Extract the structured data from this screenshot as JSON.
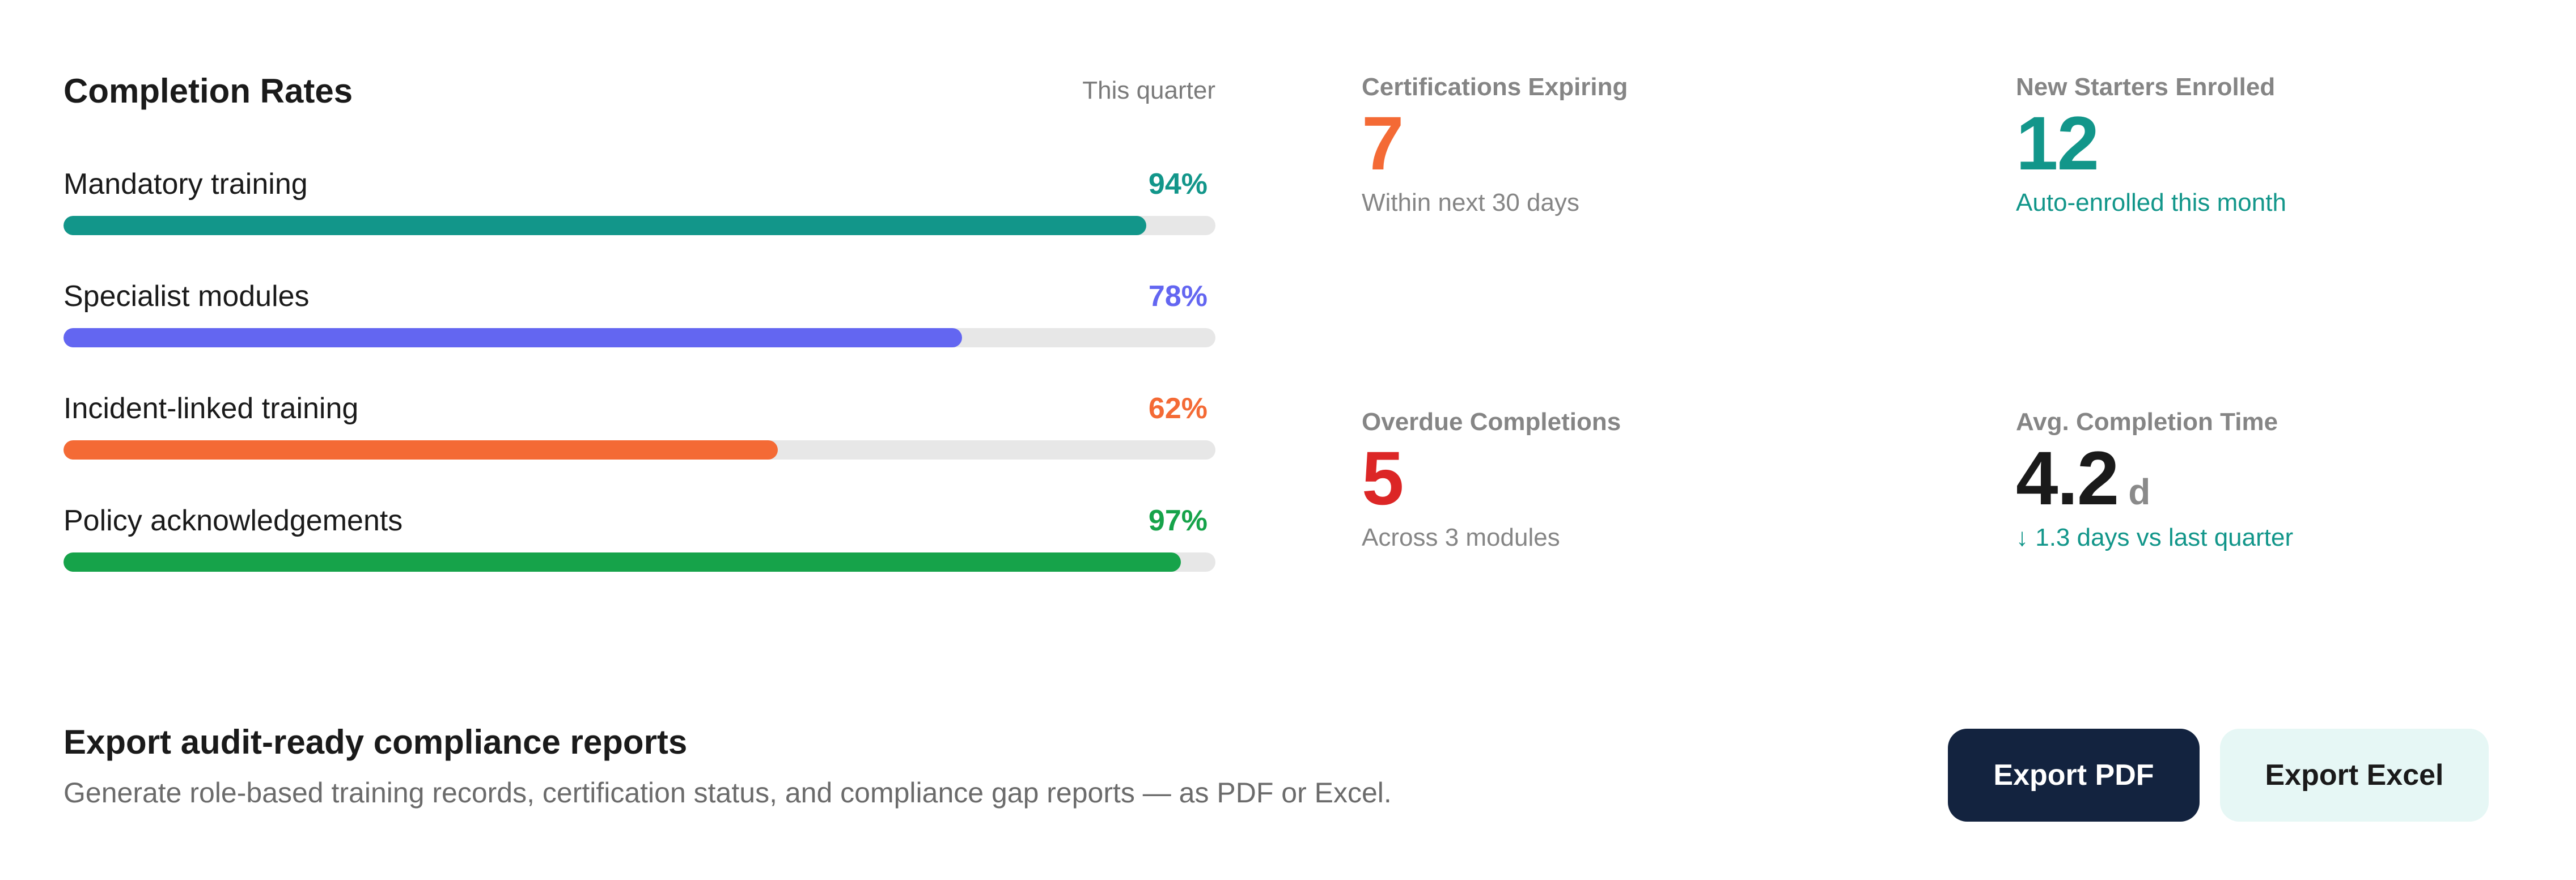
{
  "rates": {
    "title": "Completion Rates",
    "period": "This quarter",
    "items": [
      {
        "label": "Mandatory training",
        "value_text": "94%",
        "value": 94,
        "color": "#12968a"
      },
      {
        "label": "Specialist modules",
        "value_text": "78%",
        "value": 78,
        "color": "#6366f1"
      },
      {
        "label": "Incident-linked training",
        "value_text": "62%",
        "value": 62,
        "color": "#f46a35"
      },
      {
        "label": "Policy acknowledgements",
        "value_text": "97%",
        "value": 97,
        "color": "#16a34a"
      }
    ]
  },
  "stats": {
    "cert_expiring": {
      "label": "Certifications Expiring",
      "value": "7",
      "sub": "Within next 30 days",
      "value_color": "#f46a35",
      "sub_color": "#858585"
    },
    "new_starters": {
      "label": "New Starters Enrolled",
      "value": "12",
      "sub": "Auto-enrolled this month",
      "value_color": "#12968a",
      "sub_color": "#12968a"
    },
    "overdue": {
      "label": "Overdue Completions",
      "value": "5",
      "sub": "Across 3 modules",
      "value_color": "#dc2626",
      "sub_color": "#858585"
    },
    "avg_time": {
      "label": "Avg. Completion Time",
      "value": "4.2",
      "unit": "d",
      "sub": "↓ 1.3 days vs last quarter",
      "value_color": "#1a1a1a",
      "sub_color": "#12968a"
    }
  },
  "export": {
    "title": "Export audit-ready compliance reports",
    "description": "Generate role-based training records, certification status, and compliance gap reports — as PDF or Excel.",
    "pdf_label": "Export PDF",
    "excel_label": "Export Excel"
  }
}
